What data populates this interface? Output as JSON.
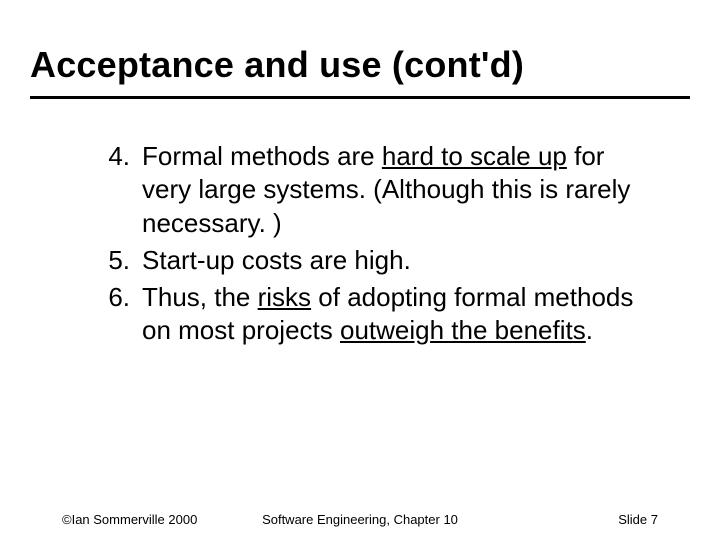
{
  "slide": {
    "title": "Acceptance and use (cont'd)",
    "title_fontsize": 36,
    "title_underline_color": "#000000",
    "background_color": "#ffffff",
    "text_color": "#000000",
    "list": {
      "start": 4,
      "body_fontsize": 26,
      "items": [
        {
          "number": "4.",
          "segments": [
            {
              "text": "Formal methods are ",
              "underline": false
            },
            {
              "text": "hard to scale up",
              "underline": true
            },
            {
              "text": " for very large systems. (Although this is rarely necessary. )",
              "underline": false
            }
          ]
        },
        {
          "number": "5.",
          "segments": [
            {
              "text": "Start-up costs are high.",
              "underline": false
            }
          ]
        },
        {
          "number": "6.",
          "segments": [
            {
              "text": "Thus, the ",
              "underline": false
            },
            {
              "text": "risks",
              "underline": true
            },
            {
              "text": " of adopting formal methods on most projects ",
              "underline": false
            },
            {
              "text": "outweigh the benefits",
              "underline": true
            },
            {
              "text": ".",
              "underline": false
            }
          ]
        }
      ]
    },
    "footer": {
      "left": "©Ian Sommerville 2000",
      "center": "Software Engineering, Chapter 10",
      "right_label": "Slide",
      "right_number": "7",
      "fontsize": 13
    }
  }
}
